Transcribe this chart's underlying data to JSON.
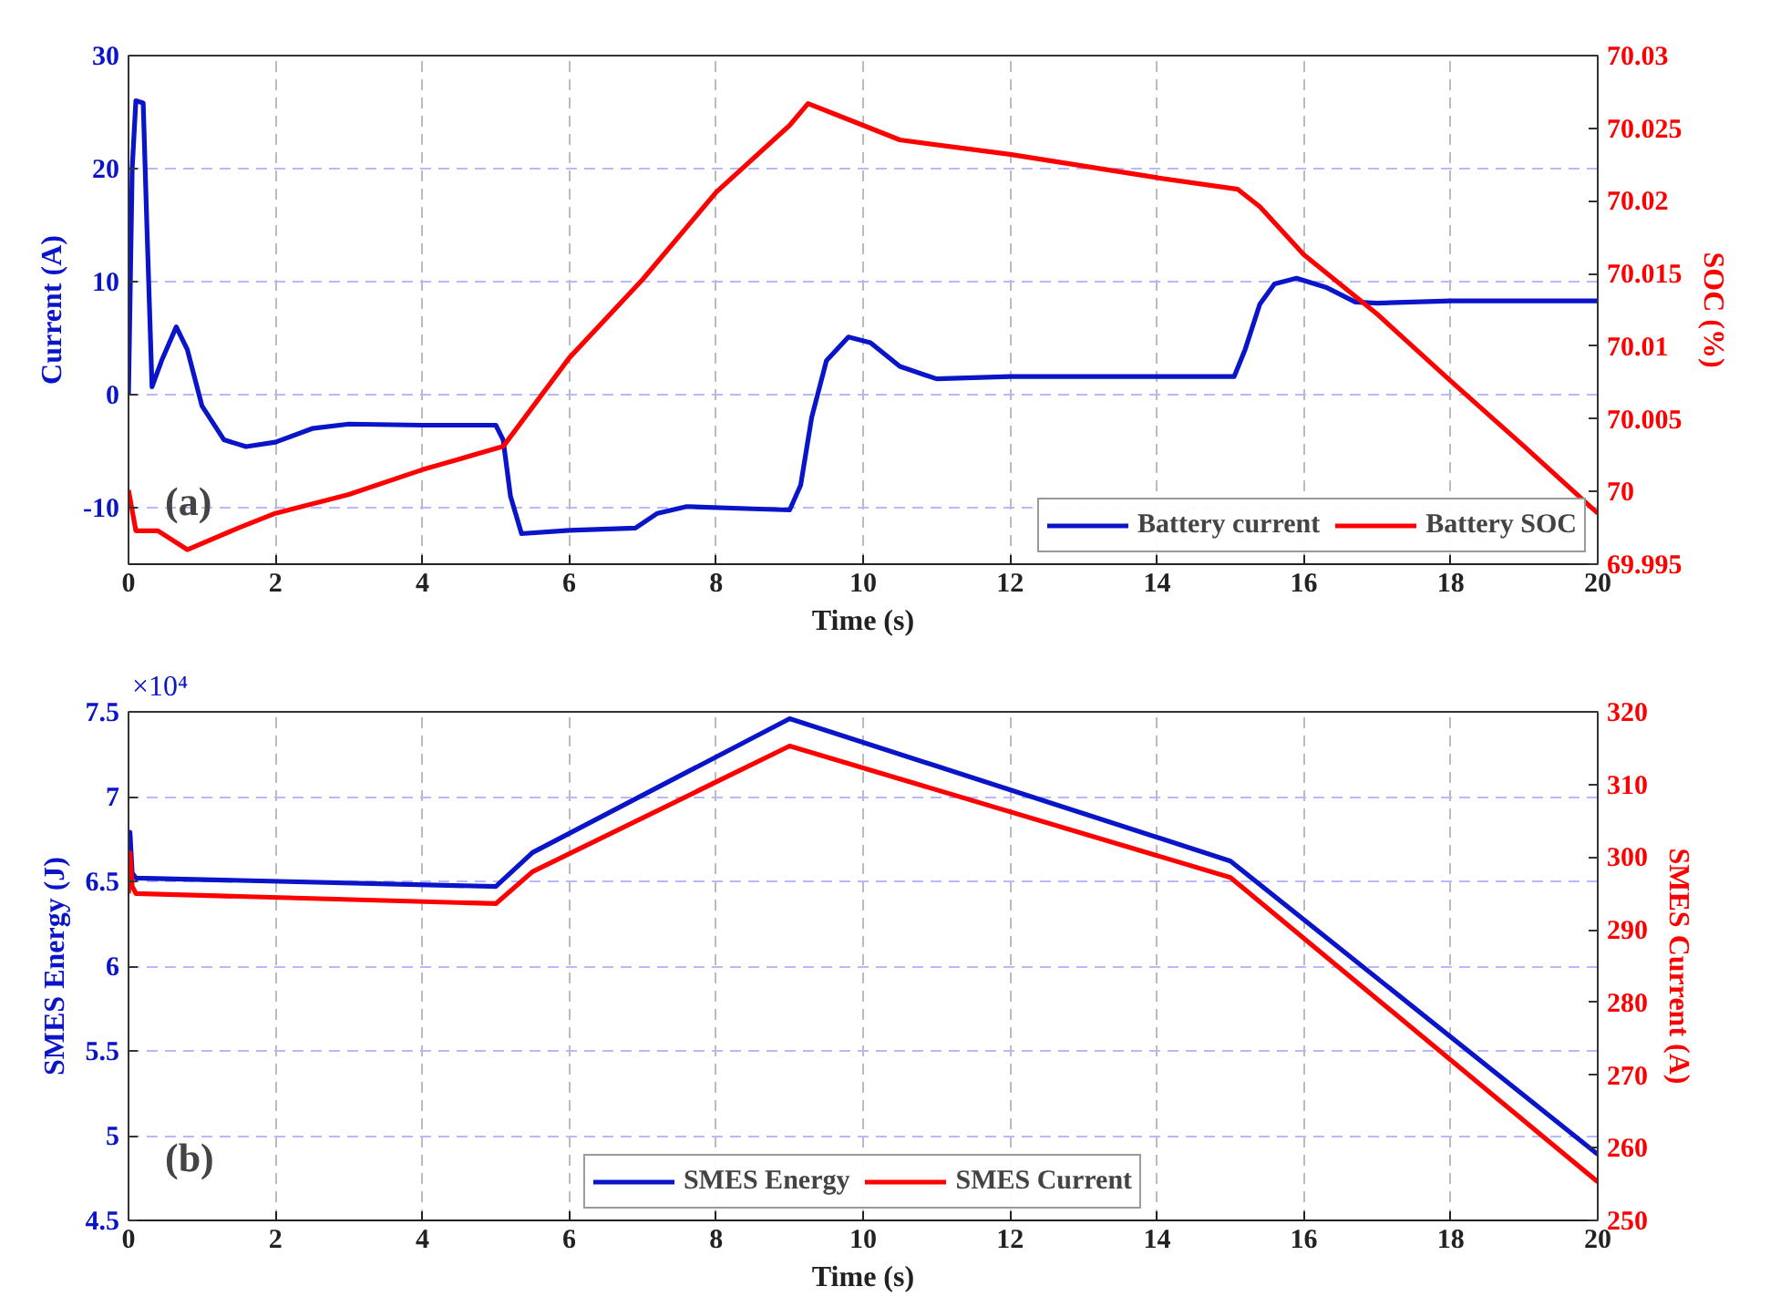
{
  "chart_data": [
    {
      "type": "line",
      "xlabel": "Time (s)",
      "ylabel": "Current (A)",
      "y2label": "SOC (%)",
      "annotations": [
        "(a)"
      ],
      "xlim": [
        0,
        20
      ],
      "xticks": [
        0,
        2,
        4,
        6,
        8,
        10,
        12,
        14,
        16,
        18,
        20
      ],
      "ylim": [
        -15,
        30
      ],
      "yticks": [
        -10,
        0,
        10,
        20,
        30
      ],
      "y2lim": [
        69.995,
        70.03
      ],
      "y2ticks": [
        69.995,
        70,
        70.005,
        70.01,
        70.015,
        70.02,
        70.025,
        70.03
      ],
      "grid": true,
      "legend": "bottom right",
      "line_style": "solid",
      "marker": "none",
      "series": [
        {
          "name": "Battery current",
          "color": "#0a14c8",
          "x": [
            0,
            0.05,
            0.1,
            0.2,
            0.25,
            0.32,
            0.45,
            0.65,
            0.8,
            1.0,
            1.3,
            1.6,
            2,
            2.5,
            3,
            4,
            5,
            5.1,
            5.2,
            5.35,
            6,
            6.9,
            7.2,
            7.6,
            8.5,
            9.0,
            9.15,
            9.3,
            9.5,
            9.8,
            10.1,
            10.5,
            11,
            12,
            13,
            14,
            15.05,
            15.2,
            15.4,
            15.6,
            15.9,
            16.3,
            16.7,
            17,
            18,
            19,
            20
          ],
          "values": [
            0,
            20,
            26,
            25.8,
            15,
            0.7,
            3,
            6,
            4,
            -1,
            -4,
            -4.6,
            -4.2,
            -3,
            -2.6,
            -2.7,
            -2.7,
            -4,
            -9,
            -12.3,
            -12,
            -11.8,
            -10.5,
            -9.9,
            -10.1,
            -10.2,
            -8,
            -2,
            3,
            5.1,
            4.6,
            2.5,
            1.4,
            1.6,
            1.6,
            1.6,
            1.6,
            4,
            8,
            9.8,
            10.3,
            9.5,
            8.2,
            8.1,
            8.3,
            8.3,
            8.3
          ]
        },
        {
          "name": "Battery SOC",
          "color": "#ff0000",
          "axis": "y2",
          "x": [
            0,
            0.1,
            0.4,
            0.8,
            1.5,
            2,
            3,
            4,
            5.1,
            6,
            7,
            8,
            9,
            9.25,
            9.6,
            10,
            10.5,
            12,
            14,
            15.1,
            15.4,
            16,
            17,
            18,
            19,
            20
          ],
          "values": [
            70.0001,
            69.9973,
            69.9973,
            69.996,
            69.9975,
            69.9985,
            69.9998,
            70.0015,
            70.0031,
            70.0092,
            70.0146,
            70.0206,
            70.0252,
            70.0267,
            70.026,
            70.0252,
            70.0242,
            70.0232,
            70.0216,
            70.0208,
            70.0196,
            70.0163,
            70.0122,
            70.0076,
            70.0031,
            69.9985
          ]
        }
      ]
    },
    {
      "type": "line",
      "xlabel": "Time (s)",
      "ylabel": "SMES Energy (J)",
      "y2label": "SMES Current (A)",
      "annotations": [
        "(b)",
        "×10⁴"
      ],
      "xlim": [
        0,
        20
      ],
      "xticks": [
        0,
        2,
        4,
        6,
        8,
        10,
        12,
        14,
        16,
        18,
        20
      ],
      "ylim": [
        4.5,
        7.5
      ],
      "yticks": [
        4.5,
        5,
        5.5,
        6,
        6.5,
        7,
        7.5
      ],
      "y2lim": [
        250,
        320
      ],
      "y2ticks": [
        250,
        260,
        270,
        280,
        290,
        300,
        310,
        320
      ],
      "grid": true,
      "legend": "bottom",
      "line_style": "solid",
      "marker": "none",
      "series": [
        {
          "name": "SMES Energy",
          "color": "#0a14c8",
          "x": [
            0,
            0.02,
            0.05,
            0.1,
            5,
            5.5,
            9,
            15,
            20
          ],
          "values": [
            6.55,
            6.79,
            6.55,
            6.52,
            6.47,
            6.67,
            7.46,
            6.62,
            4.89
          ]
        },
        {
          "name": "SMES Current",
          "color": "#ff0000",
          "axis": "y2",
          "x": [
            0,
            0.02,
            0.05,
            0.1,
            5,
            5.5,
            9,
            15,
            20
          ],
          "values": [
            295,
            300.6,
            296,
            295,
            293.6,
            298,
            315.3,
            297.2,
            255.3
          ]
        }
      ]
    }
  ]
}
